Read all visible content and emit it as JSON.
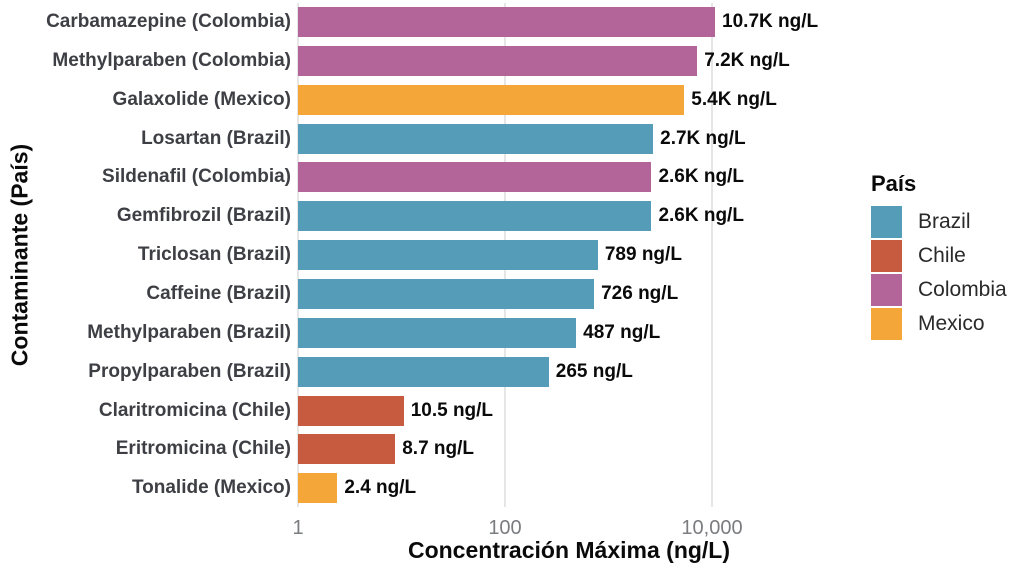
{
  "chart_data": {
    "type": "bar",
    "orientation": "horizontal",
    "x_scale": "log10",
    "title": "",
    "xlabel": "Concentración Máxima (ng/L)",
    "ylabel": "Contaminante (País)",
    "xlim": [
      1,
      20000
    ],
    "grid": "vertical-major-only",
    "x_ticks": [
      {
        "value": 1,
        "label": "1"
      },
      {
        "value": 100,
        "label": "100"
      },
      {
        "value": 10000,
        "label": "10,000"
      }
    ],
    "rows": [
      {
        "label": "Carbamazepine (Colombia)",
        "country": "Colombia",
        "value": 10700,
        "value_label": "10.7K ng/L"
      },
      {
        "label": "Methylparaben (Colombia)",
        "country": "Colombia",
        "value": 7200,
        "value_label": "7.2K ng/L"
      },
      {
        "label": "Galaxolide (Mexico)",
        "country": "Mexico",
        "value": 5400,
        "value_label": "5.4K ng/L"
      },
      {
        "label": "Losartan (Brazil)",
        "country": "Brazil",
        "value": 2700,
        "value_label": "2.7K ng/L"
      },
      {
        "label": "Sildenafil (Colombia)",
        "country": "Colombia",
        "value": 2600,
        "value_label": "2.6K ng/L"
      },
      {
        "label": "Gemfibrozil (Brazil)",
        "country": "Brazil",
        "value": 2600,
        "value_label": "2.6K ng/L"
      },
      {
        "label": "Triclosan (Brazil)",
        "country": "Brazil",
        "value": 789,
        "value_label": "789 ng/L"
      },
      {
        "label": "Caffeine (Brazil)",
        "country": "Brazil",
        "value": 726,
        "value_label": "726 ng/L"
      },
      {
        "label": "Methylparaben (Brazil)",
        "country": "Brazil",
        "value": 487,
        "value_label": "487 ng/L"
      },
      {
        "label": "Propylparaben (Brazil)",
        "country": "Brazil",
        "value": 265,
        "value_label": "265 ng/L"
      },
      {
        "label": "Claritromicina (Chile)",
        "country": "Chile",
        "value": 10.5,
        "value_label": "10.5 ng/L"
      },
      {
        "label": "Eritromicina (Chile)",
        "country": "Chile",
        "value": 8.7,
        "value_label": "8.7 ng/L"
      },
      {
        "label": "Tonalide (Mexico)",
        "country": "Mexico",
        "value": 2.4,
        "value_label": "2.4 ng/L"
      }
    ],
    "legend": {
      "title": "País",
      "position": "right",
      "items": [
        {
          "label": "Brazil",
          "color": "#559CB8"
        },
        {
          "label": "Chile",
          "color": "#C65B3F"
        },
        {
          "label": "Colombia",
          "color": "#B3659A"
        },
        {
          "label": "Mexico",
          "color": "#F4A738"
        }
      ]
    }
  },
  "colors": {
    "background": "#FFFFFF",
    "gridline": "#E6E6E6",
    "tick_label": "#7B7C80",
    "category_label": "#3E3F44",
    "value_label": "#0A0A0A",
    "axis_title": "#0A0A0A"
  }
}
